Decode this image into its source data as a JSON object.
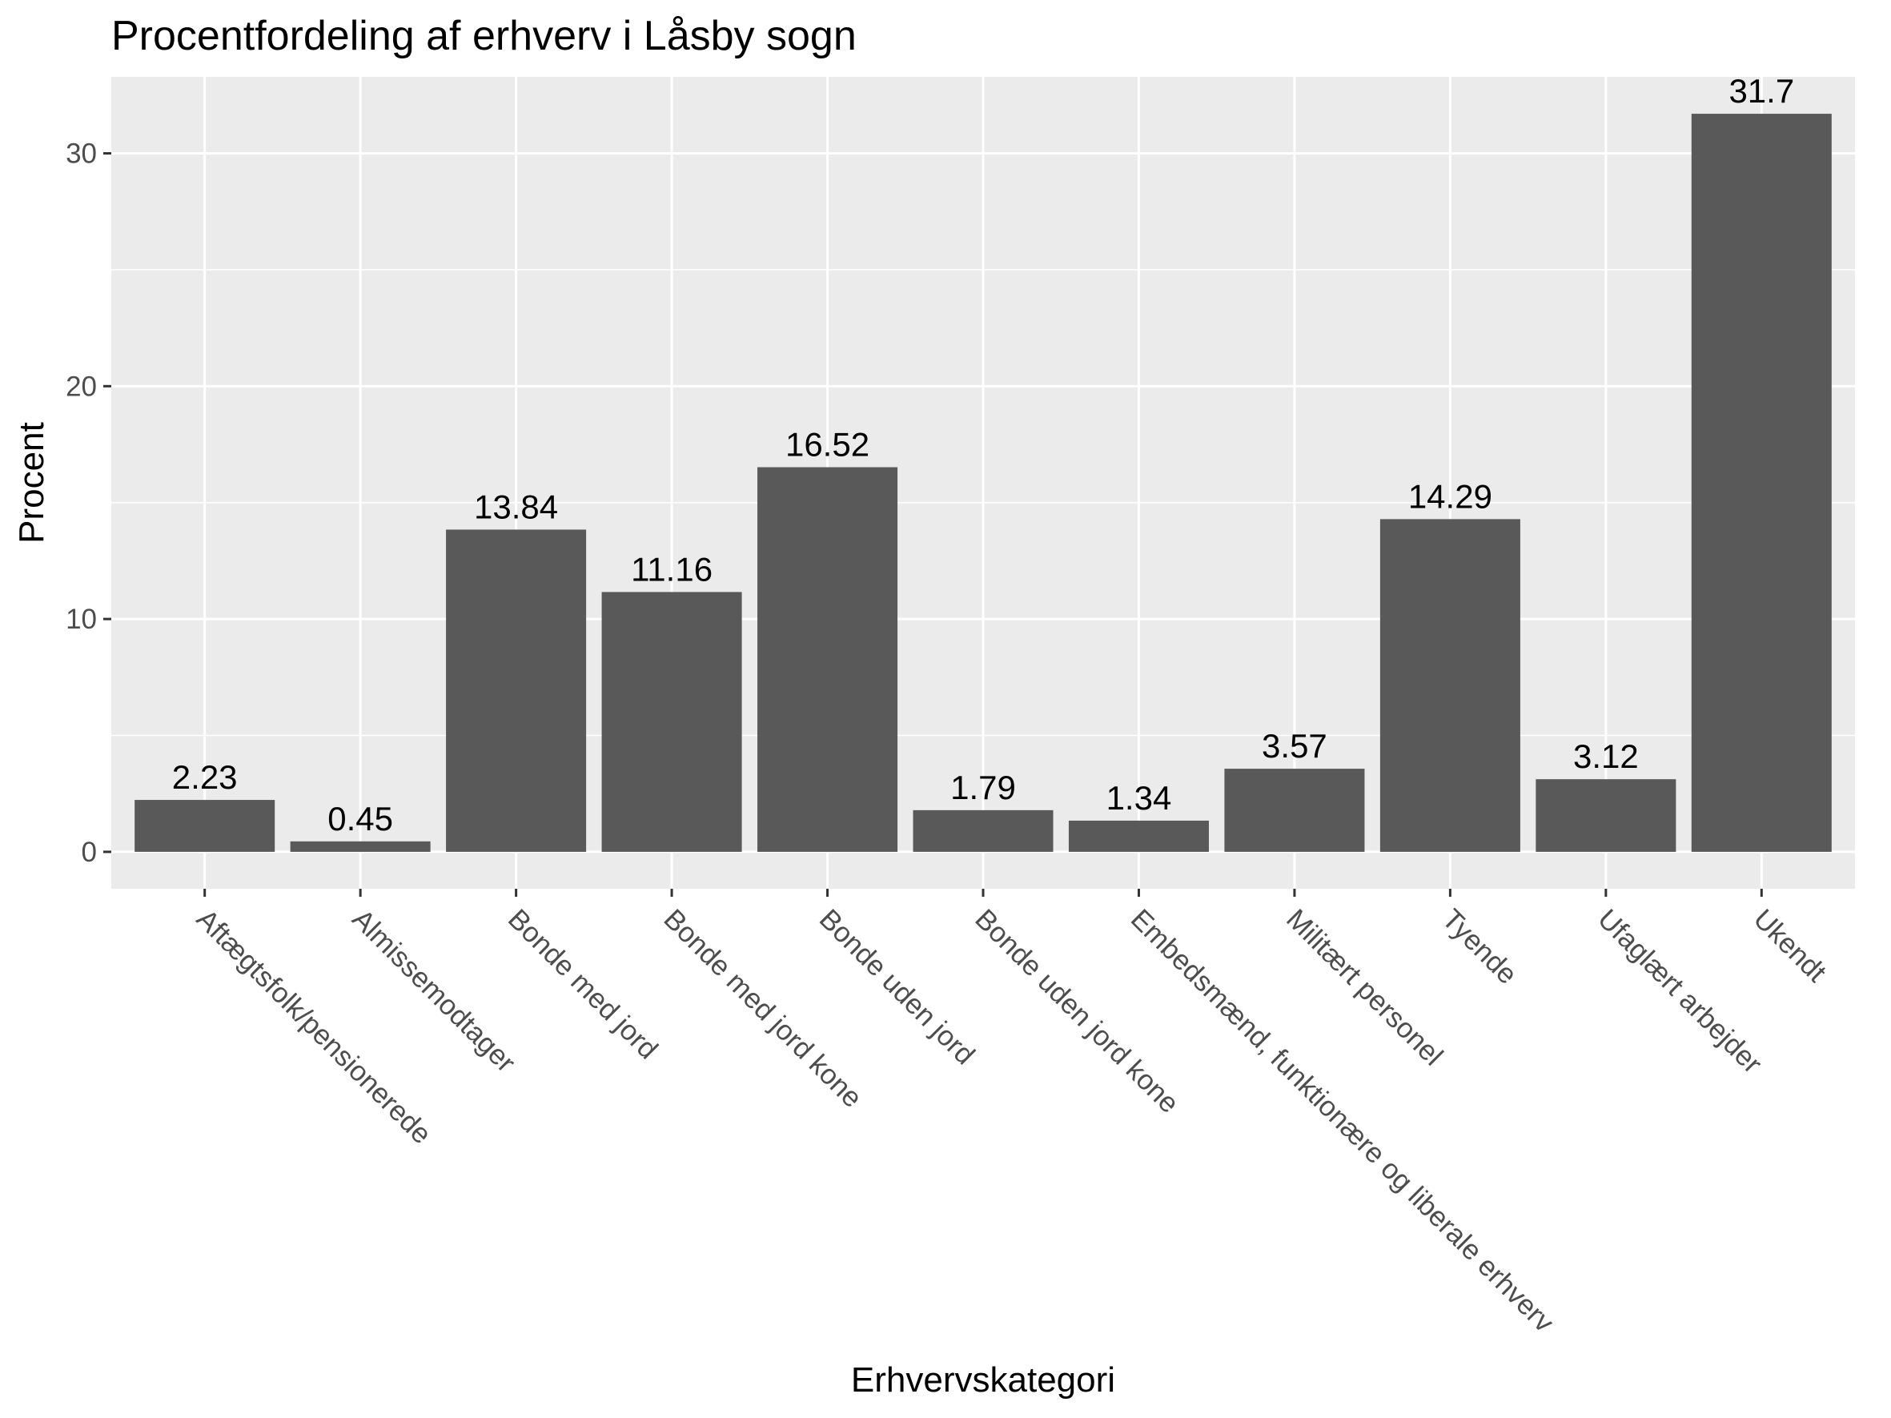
{
  "chart_data": {
    "type": "bar",
    "title": "Procentfordeling af erhverv i Låsby sogn",
    "xlabel": "Erhvervskategori",
    "ylabel": "Procent",
    "categories": [
      "Aftægtsfolk/pensionerede",
      "Almissemodtager",
      "Bonde med jord",
      "Bonde med jord kone",
      "Bonde uden jord",
      "Bonde uden jord kone",
      "Embedsmænd, funktionære og liberale erhverv",
      "Militært personel",
      "Tyende",
      "Ufaglært arbejder",
      "Ukendt"
    ],
    "values": [
      2.23,
      0.45,
      13.84,
      11.16,
      16.52,
      1.79,
      1.34,
      3.57,
      14.29,
      3.12,
      31.7
    ],
    "data_labels": [
      "2.23",
      "0.45",
      "13.84",
      "11.16",
      "16.52",
      "1.79",
      "1.34",
      "3.57",
      "14.29",
      "3.12",
      "31.7"
    ],
    "yticks": [
      0,
      10,
      20,
      30
    ],
    "ytick_labels": [
      "0",
      "10",
      "20",
      "30"
    ],
    "ylim": [
      -1.585,
      33.285
    ],
    "grid": true,
    "bar_color": "#595959",
    "panel_color": "#ebebeb",
    "gridline_color": "#ffffff"
  }
}
